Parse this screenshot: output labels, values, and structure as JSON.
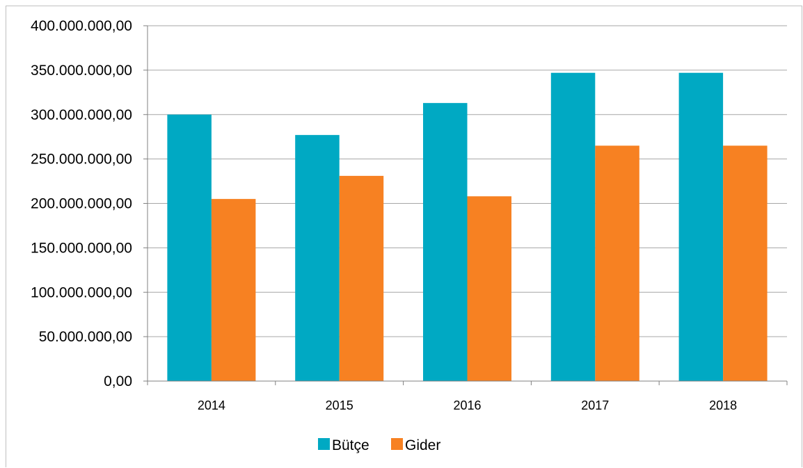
{
  "chart_data": {
    "type": "bar",
    "categories": [
      "2014",
      "2015",
      "2016",
      "2017",
      "2018"
    ],
    "series": [
      {
        "name": "Bütçe",
        "color": "#00a9c3",
        "values": [
          300000000,
          277000000,
          313000000,
          347000000,
          347000000
        ]
      },
      {
        "name": "Gider",
        "color": "#f78122",
        "values": [
          205000000,
          231000000,
          208000000,
          265000000,
          265000000
        ]
      }
    ],
    "ylim": [
      0,
      400000000
    ],
    "ytick_labels": [
      "0,00",
      "50.000.000,00",
      "100.000.000,00",
      "150.000.000,00",
      "200.000.000,00",
      "250.000.000,00",
      "300.000.000,00",
      "350.000.000,00",
      "400.000.000,00"
    ],
    "grid": true,
    "legend_position": "bottom",
    "title": "",
    "xlabel": "",
    "ylabel": ""
  }
}
